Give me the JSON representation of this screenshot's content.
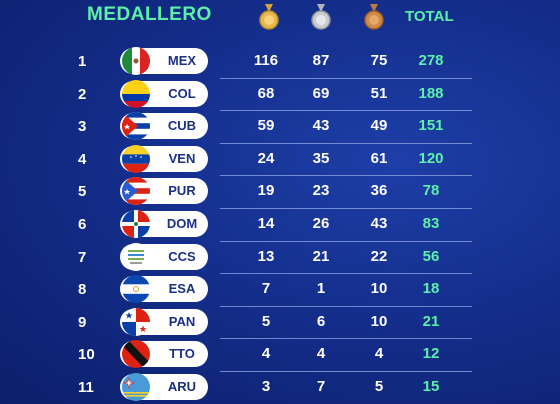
{
  "header": {
    "title": "MEDALLERO",
    "total_label": "TOTAL"
  },
  "medals": {
    "gold": "gold-medal-icon",
    "silver": "silver-medal-icon",
    "bronze": "bronze-medal-icon"
  },
  "colors": {
    "accent": "#5cf0a8",
    "background": "#142e8c"
  },
  "rows": [
    {
      "rank": "1",
      "code": "MEX",
      "gold": "116",
      "silver": "87",
      "bronze": "75",
      "total": "278",
      "flag": "mexico-flag-icon"
    },
    {
      "rank": "2",
      "code": "COL",
      "gold": "68",
      "silver": "69",
      "bronze": "51",
      "total": "188",
      "flag": "colombia-flag-icon"
    },
    {
      "rank": "3",
      "code": "CUB",
      "gold": "59",
      "silver": "43",
      "bronze": "49",
      "total": "151",
      "flag": "cuba-flag-icon"
    },
    {
      "rank": "4",
      "code": "VEN",
      "gold": "24",
      "silver": "35",
      "bronze": "61",
      "total": "120",
      "flag": "venezuela-flag-icon"
    },
    {
      "rank": "5",
      "code": "PUR",
      "gold": "19",
      "silver": "23",
      "bronze": "36",
      "total": "78",
      "flag": "puerto-rico-flag-icon"
    },
    {
      "rank": "6",
      "code": "DOM",
      "gold": "14",
      "silver": "26",
      "bronze": "43",
      "total": "83",
      "flag": "dominican-republic-flag-icon"
    },
    {
      "rank": "7",
      "code": "CCS",
      "gold": "13",
      "silver": "21",
      "bronze": "22",
      "total": "56",
      "flag": "ccs-logo-icon"
    },
    {
      "rank": "8",
      "code": "ESA",
      "gold": "7",
      "silver": "1",
      "bronze": "10",
      "total": "18",
      "flag": "el-salvador-flag-icon"
    },
    {
      "rank": "9",
      "code": "PAN",
      "gold": "5",
      "silver": "6",
      "bronze": "10",
      "total": "21",
      "flag": "panama-flag-icon"
    },
    {
      "rank": "10",
      "code": "TTO",
      "gold": "4",
      "silver": "4",
      "bronze": "4",
      "total": "12",
      "flag": "trinidad-tobago-flag-icon"
    },
    {
      "rank": "11",
      "code": "ARU",
      "gold": "3",
      "silver": "7",
      "bronze": "5",
      "total": "15",
      "flag": "aruba-flag-icon"
    }
  ]
}
